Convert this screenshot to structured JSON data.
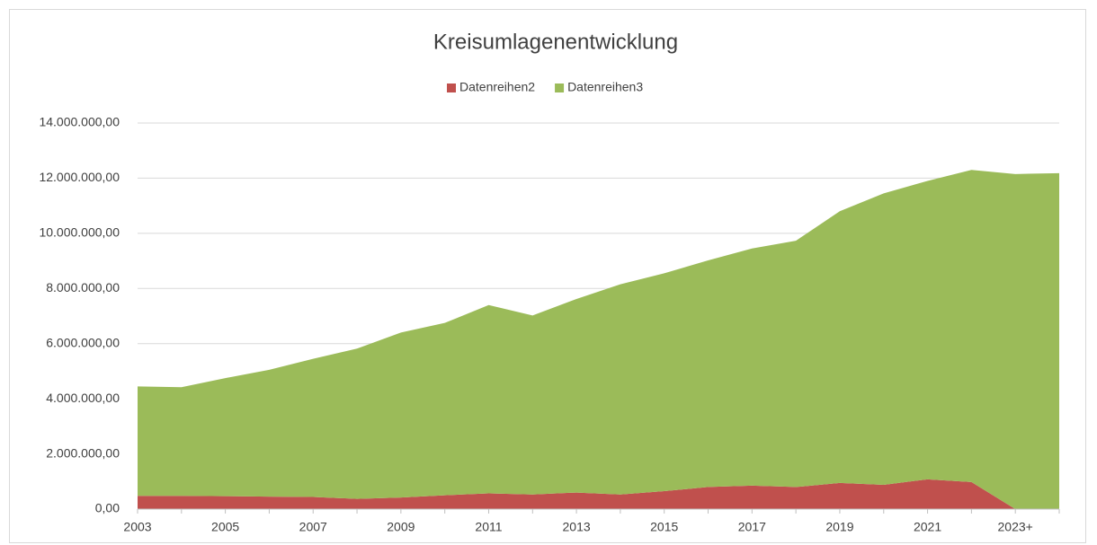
{
  "chart_data": {
    "type": "stacked_area",
    "title": "Kreisumlagenentwicklung",
    "categories": [
      "2003",
      null,
      "2005",
      null,
      "2007",
      null,
      "2009",
      null,
      "2011",
      null,
      "2013",
      null,
      "2015",
      null,
      "2017",
      null,
      "2019",
      null,
      "2021",
      null,
      "2023+",
      null
    ],
    "series": [
      {
        "name": "Datenreihen2",
        "color": "#c0504d",
        "values": [
          480000,
          480000,
          470000,
          450000,
          440000,
          370000,
          420000,
          500000,
          570000,
          530000,
          600000,
          530000,
          650000,
          800000,
          850000,
          800000,
          950000,
          880000,
          1080000,
          980000,
          0,
          0
        ]
      },
      {
        "name": "Datenreihen3",
        "color": "#9bbb59",
        "values": [
          3970000,
          3940000,
          4280000,
          4600000,
          5010000,
          5450000,
          5980000,
          6250000,
          6830000,
          6490000,
          7020000,
          7620000,
          7900000,
          8220000,
          8600000,
          8930000,
          9850000,
          10570000,
          10820000,
          11320000,
          12150000,
          12180000
        ]
      }
    ],
    "ylim": [
      0,
      14000000
    ],
    "yticks": [
      {
        "value": 0,
        "label": "0,00"
      },
      {
        "value": 2000000,
        "label": "2.000.000,00"
      },
      {
        "value": 4000000,
        "label": "4.000.000,00"
      },
      {
        "value": 6000000,
        "label": "6.000.000,00"
      },
      {
        "value": 8000000,
        "label": "8.000.000,00"
      },
      {
        "value": 10000000,
        "label": "10.000.000,00"
      },
      {
        "value": 12000000,
        "label": "12.000.000,00"
      },
      {
        "value": 14000000,
        "label": "14.000.000,00"
      }
    ],
    "grid": true,
    "legend": "top"
  }
}
